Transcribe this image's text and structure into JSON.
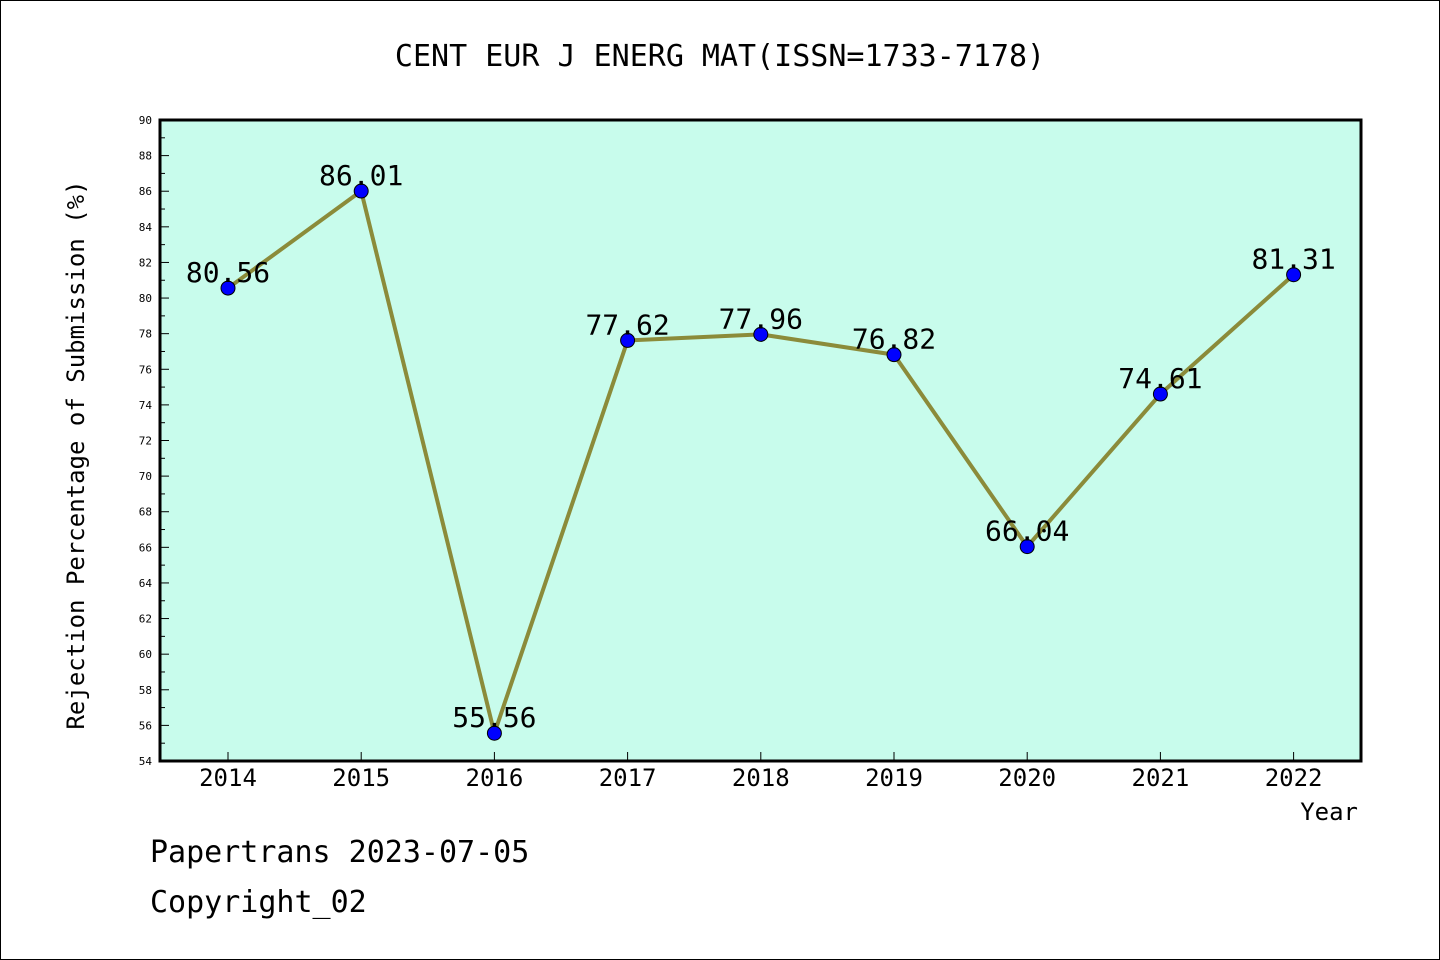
{
  "chart_data": {
    "type": "line",
    "title": "CENT EUR J ENERG MAT(ISSN=1733-7178)",
    "xlabel": "Year",
    "ylabel": "Rejection Percentage of Submission (%)",
    "categories": [
      "2014",
      "2015",
      "2016",
      "2017",
      "2018",
      "2019",
      "2020",
      "2021",
      "2022"
    ],
    "series": [
      {
        "values": [
          80.56,
          86.01,
          55.56,
          77.62,
          77.96,
          76.82,
          66.04,
          74.61,
          81.31
        ],
        "labels": [
          "80.56",
          "86.01",
          "55.56",
          "77.62",
          "77.96",
          "76.82",
          "66.04",
          "74.61",
          "81.31"
        ]
      }
    ],
    "ylim": [
      54,
      90
    ],
    "yticks": [
      "54",
      "56",
      "58",
      "60",
      "62",
      "64",
      "66",
      "68",
      "70",
      "72",
      "74",
      "76",
      "78",
      "80",
      "82",
      "84",
      "86",
      "88",
      "90"
    ],
    "grid": false,
    "colors": {
      "plot_background": "#c8fcec",
      "line": "#8b8b3a",
      "marker": "#0000ff"
    }
  },
  "footer": {
    "line1": "Papertrans 2023-07-05",
    "line2": "Copyright_02"
  }
}
